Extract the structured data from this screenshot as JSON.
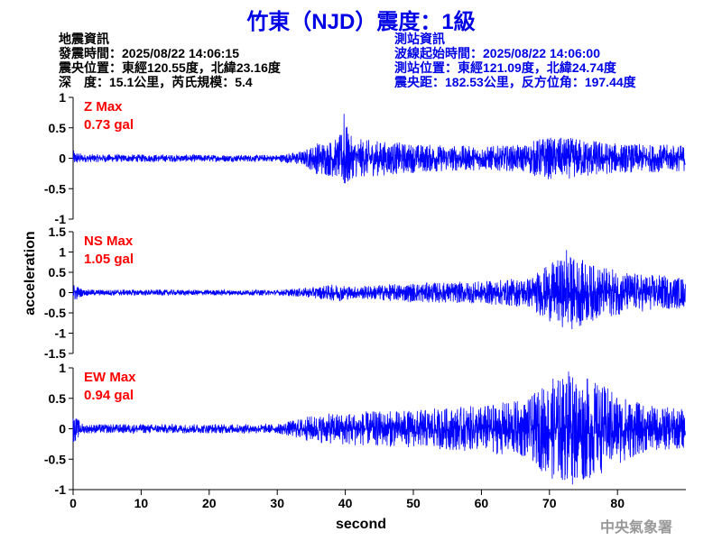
{
  "title": "竹東（NJD）震度：1級",
  "earthquake_info": {
    "heading": "地震資訊",
    "time": "發震時間：2025/08/22 14:06:15",
    "epicenter": "震央位置：東經120.55度，北緯23.16度",
    "depth_magnitude": "深　度：15.1公里，芮氏規模：5.4"
  },
  "station_info": {
    "heading": "測站資訊",
    "start_time": "波線起始時間：2025/08/22 14:06:00",
    "location": "測站位置：東經121.09度，北緯24.74度",
    "distance": "震央距：182.53公里，反方位角：197.44度"
  },
  "watermark": "中央氣象署",
  "colors": {
    "trace": "#0000ff",
    "label": "#ff0000",
    "title": "#0000e6"
  },
  "chart_data": {
    "type": "line",
    "xlabel": "second",
    "ylabel": "acceleration",
    "xlim": [
      0,
      90
    ],
    "xticks": [
      "0",
      "10",
      "20",
      "30",
      "40",
      "50",
      "60",
      "70",
      "80"
    ],
    "panels": [
      {
        "name": "Z",
        "label": "Z Max",
        "max_text": "0.73 gal",
        "peak": 0.73,
        "peak_time": 39.8,
        "ylim": [
          -1,
          1
        ],
        "yticks": [
          "1",
          "0.5",
          "0",
          "-0.5",
          "-1"
        ],
        "ytick_values": [
          1,
          0.5,
          0,
          -0.5,
          -1
        ],
        "envelope": [
          [
            0,
            0.12
          ],
          [
            1.5,
            0.06
          ],
          [
            30,
            0.05
          ],
          [
            34,
            0.12
          ],
          [
            36,
            0.25
          ],
          [
            39,
            0.3
          ],
          [
            40,
            0.55
          ],
          [
            41,
            0.3
          ],
          [
            50,
            0.22
          ],
          [
            60,
            0.18
          ],
          [
            66,
            0.2
          ],
          [
            69,
            0.32
          ],
          [
            75,
            0.3
          ],
          [
            80,
            0.22
          ],
          [
            90,
            0.2
          ]
        ]
      },
      {
        "name": "NS",
        "label": "NS Max",
        "max_text": "1.05 gal",
        "peak": 1.05,
        "peak_time": 72.5,
        "ylim": [
          -1.5,
          1.5
        ],
        "yticks": [
          "1.5",
          "1",
          "0.5",
          "0",
          "-0.5",
          "-1",
          "-1.5"
        ],
        "ytick_values": [
          1.5,
          1,
          0.5,
          0,
          -0.5,
          -1,
          -1.5
        ],
        "envelope": [
          [
            0,
            0.22
          ],
          [
            1.5,
            0.07
          ],
          [
            30,
            0.06
          ],
          [
            35,
            0.12
          ],
          [
            39,
            0.2
          ],
          [
            41,
            0.14
          ],
          [
            50,
            0.22
          ],
          [
            60,
            0.25
          ],
          [
            67,
            0.35
          ],
          [
            70,
            0.65
          ],
          [
            73,
            0.85
          ],
          [
            77,
            0.6
          ],
          [
            82,
            0.45
          ],
          [
            90,
            0.35
          ]
        ]
      },
      {
        "name": "EW",
        "label": "EW Max",
        "max_text": "0.94 gal",
        "peak": 0.94,
        "peak_time": 72.8,
        "ylim": [
          -1,
          1
        ],
        "yticks": [
          "1",
          "0.5",
          "0",
          "-0.5",
          "-1"
        ],
        "ytick_values": [
          1,
          0.5,
          0,
          -0.5,
          -1
        ],
        "envelope": [
          [
            0,
            0.22
          ],
          [
            1.5,
            0.07
          ],
          [
            30,
            0.07
          ],
          [
            35,
            0.2
          ],
          [
            40,
            0.25
          ],
          [
            50,
            0.28
          ],
          [
            60,
            0.35
          ],
          [
            67,
            0.45
          ],
          [
            70,
            0.75
          ],
          [
            74,
            0.85
          ],
          [
            79,
            0.6
          ],
          [
            84,
            0.35
          ],
          [
            90,
            0.3
          ]
        ]
      }
    ]
  }
}
